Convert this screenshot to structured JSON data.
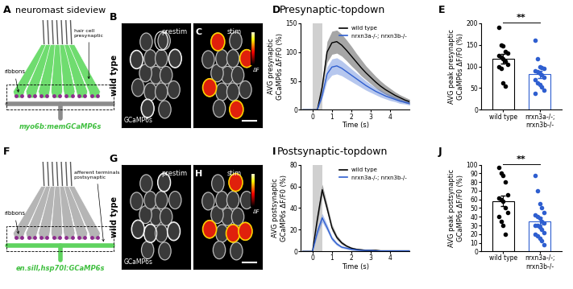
{
  "rows": {
    "top": {
      "title_left": "neuromast sideview",
      "title_center": "Presynaptic-topdown"
    },
    "bottom": {
      "title_center": "Postsynaptic-topdown"
    }
  },
  "panels": {
    "A": {
      "panel_label": "A",
      "ribbons_label": "ribbons",
      "target_label": "hair cell\npresynaptic",
      "line_label": "myo6b:memGCaMP6s"
    },
    "B": {
      "panel_label": "B",
      "genotype": "wild type",
      "condition": "prestim",
      "channel": "GCaMP6s"
    },
    "C": {
      "panel_label": "C",
      "condition": "stim",
      "colorbar_label": "ΔF"
    },
    "F": {
      "panel_label": "F",
      "ribbons_label": "ribbons",
      "target_label": "afferent terminals\npostsynaptic",
      "line_label": "en.sill,hsp70l:GCaMP6s"
    },
    "G": {
      "panel_label": "G",
      "genotype": "wild type",
      "condition": "prestim",
      "channel": "GCaMP6s"
    },
    "H": {
      "panel_label": "H",
      "condition": "stim",
      "colorbar_label": "ΔF"
    }
  },
  "chart_data": [
    {
      "type": "line",
      "panel_label": "D",
      "x": [
        -0.5,
        -0.25,
        0,
        0.25,
        0.5,
        0.75,
        1,
        1.25,
        1.5,
        1.75,
        2,
        2.25,
        2.5,
        2.75,
        3,
        3.25,
        3.5,
        3.75,
        4,
        4.25,
        4.5,
        4.75,
        5
      ],
      "series": [
        {
          "name": "wild type",
          "color": "#000000",
          "values": [
            0,
            0,
            0,
            0,
            40,
            100,
            116,
            118,
            112,
            103,
            93,
            83,
            73,
            64,
            56,
            48,
            41,
            35,
            30,
            25,
            21,
            17,
            14
          ],
          "error": [
            0,
            0,
            0,
            0,
            8,
            18,
            20,
            20,
            19,
            18,
            17,
            15,
            14,
            12,
            11,
            10,
            9,
            8,
            7,
            6,
            5,
            5,
            4
          ]
        },
        {
          "name": "nrxn3a-/-; nrxn3b-/-",
          "color": "#2f5fd0",
          "values": [
            0,
            0,
            0,
            0,
            25,
            62,
            74,
            76,
            72,
            66,
            60,
            54,
            48,
            42,
            37,
            32,
            28,
            24,
            21,
            18,
            15,
            13,
            11
          ],
          "error": [
            0,
            0,
            0,
            0,
            5,
            12,
            14,
            14,
            13,
            12,
            11,
            10,
            9,
            8,
            7,
            6,
            6,
            5,
            5,
            4,
            4,
            3,
            3
          ]
        }
      ],
      "xlabel": "Time (s)",
      "ylabel": "AVG presynaptic\nGCaMP6s ΔF/F0 (%)",
      "xlim": [
        -0.6,
        5
      ],
      "xticks": [
        0,
        1,
        2,
        3,
        4
      ],
      "ylim": [
        0,
        150
      ],
      "yticks": [
        0,
        50,
        100,
        150
      ],
      "stim_window": [
        0,
        0.5
      ],
      "legend": "upper right"
    },
    {
      "type": "bar",
      "panel_label": "E",
      "categories": [
        "wild type",
        "nrxn3a-/-;\nnrxn3b-/-"
      ],
      "values": [
        118,
        82
      ],
      "errors": [
        11,
        8
      ],
      "points": [
        [
          190,
          150,
          148,
          135,
          130,
          125,
          122,
          118,
          112,
          105,
          100,
          95,
          62,
          55
        ],
        [
          160,
          118,
          100,
          98,
          95,
          90,
          88,
          85,
          80,
          75,
          70,
          62,
          58,
          52,
          45,
          38
        ]
      ],
      "colors": [
        "#000000",
        "#2f5fd0"
      ],
      "ylabel": "AVG peak presynaptic\nGCaMP6s ΔF/F0 (%)",
      "ylim": [
        0,
        200
      ],
      "yticks": [
        0,
        50,
        100,
        150,
        200
      ],
      "annotations": [
        "**"
      ]
    },
    {
      "type": "line",
      "panel_label": "I",
      "x": [
        -0.5,
        -0.25,
        0,
        0.25,
        0.5,
        0.75,
        1,
        1.25,
        1.5,
        1.75,
        2,
        2.25,
        2.5,
        2.75,
        3,
        3.25,
        3.5,
        3.75,
        4,
        4.25,
        4.5,
        4.75,
        5
      ],
      "series": [
        {
          "name": "wild type",
          "color": "#000000",
          "values": [
            0,
            0,
            0,
            30,
            57,
            40,
            22,
            13,
            8,
            5,
            3,
            2,
            1.5,
            1,
            1,
            1,
            0.5,
            0.5,
            0.5,
            0.5,
            0.5,
            0.5,
            0.5
          ],
          "error": [
            0,
            0,
            0,
            4,
            5,
            4,
            3,
            2,
            1.5,
            1,
            1,
            1,
            1,
            1,
            1,
            1,
            1,
            1,
            1,
            1,
            1,
            1,
            1
          ]
        },
        {
          "name": "nrxn3a-/-; nrxn3b-/-",
          "color": "#2f5fd0",
          "values": [
            0,
            0,
            0,
            18,
            31,
            22,
            12,
            7,
            4,
            3,
            2,
            1.5,
            1,
            1,
            1,
            0.5,
            0.5,
            0.5,
            0.5,
            0.5,
            0.5,
            0.5,
            0.5
          ],
          "error": [
            0,
            0,
            0,
            3,
            4,
            3,
            2,
            1.5,
            1,
            1,
            1,
            1,
            1,
            1,
            1,
            1,
            1,
            1,
            1,
            1,
            1,
            1,
            1
          ]
        }
      ],
      "xlabel": "Time (s)",
      "ylabel": "AVG postsynaptic\nGCaMP6s ΔF/F0 (%)",
      "xlim": [
        -0.6,
        5
      ],
      "xticks": [
        0,
        1,
        2,
        3,
        4
      ],
      "ylim": [
        0,
        80
      ],
      "yticks": [
        0,
        20,
        40,
        60,
        80
      ],
      "stim_window": [
        0,
        0.5
      ],
      "legend": "upper right"
    },
    {
      "type": "bar",
      "panel_label": "J",
      "categories": [
        "wild type",
        "nrxn3a-/-;\nnrxn3b-/-"
      ],
      "values": [
        58,
        35
      ],
      "errors": [
        6,
        4
      ],
      "points": [
        [
          97,
          90,
          88,
          80,
          65,
          62,
          60,
          58,
          50,
          45,
          40,
          35,
          30,
          20
        ],
        [
          88,
          70,
          55,
          50,
          45,
          42,
          40,
          38,
          35,
          33,
          30,
          30,
          28,
          25,
          22,
          20,
          18,
          15,
          12,
          8
        ]
      ],
      "colors": [
        "#000000",
        "#2f5fd0"
      ],
      "ylabel": "AVG peak postsynaptic\nGCaMP6s ΔF/F0 (%)",
      "ylim": [
        0,
        100
      ],
      "yticks": [
        0,
        10,
        20,
        30,
        40,
        50,
        60,
        70,
        80,
        90,
        100
      ],
      "annotations": [
        "**"
      ]
    }
  ]
}
